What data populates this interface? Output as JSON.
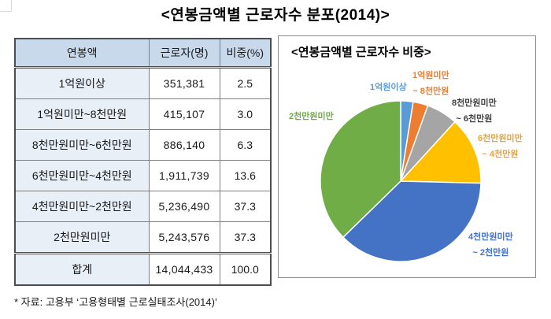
{
  "page": {
    "title": "<연봉금액별 근로자수 분포(2014)>",
    "footnote": "* 자료: 고용부 ‘고용형태별 근로실태조사(2014)’"
  },
  "table": {
    "headers": [
      "연봉액",
      "근로자(명)",
      "비중(%)"
    ],
    "rows": [
      {
        "salary": "1억원이상",
        "workers": "351,381",
        "share": "2.5"
      },
      {
        "salary": "1억원미만~8천만원",
        "workers": "415,107",
        "share": "3.0"
      },
      {
        "salary": "8천만원미만~6천만원",
        "workers": "886,140",
        "share": "6.3"
      },
      {
        "salary": "6천만원미만~4천만원",
        "workers": "1,911,739",
        "share": "13.6"
      },
      {
        "salary": "4천만원미만~2천만원",
        "workers": "5,236,490",
        "share": "37.3"
      },
      {
        "salary": "2천만원미만",
        "workers": "5,243,576",
        "share": "37.3"
      }
    ],
    "total_row": {
      "salary": "합계",
      "workers": "14,044,433",
      "share": "100.0"
    }
  },
  "chart": {
    "title": "<연봉금액별 근로자수 비중>"
  },
  "chart_data": {
    "type": "pie",
    "title": "<연봉금액별 근로자수 비중>",
    "categories": [
      "1억원이상",
      "1억원미만~8천만원",
      "8천만원미만~6천만원",
      "6천만원미만~4천만원",
      "4천만원미만~2천만원",
      "2천만원미만"
    ],
    "values": [
      2.5,
      3.0,
      6.3,
      13.6,
      37.3,
      37.3
    ],
    "unit": "%",
    "colors": [
      "#5B9BD5",
      "#ED7D31",
      "#A5A5A5",
      "#FFC000",
      "#4472C4",
      "#70AD47"
    ],
    "start_angle_deg_from_top": 0,
    "direction": "clockwise",
    "legend_position": "callout-labels",
    "labels": [
      {
        "lines": [
          "1억원이상"
        ],
        "color": "#5B9BD5"
      },
      {
        "lines": [
          "1억원미만",
          "~ 8천만원"
        ],
        "color": "#ED7D31"
      },
      {
        "lines": [
          "8천만원미만",
          "~ 6천만원"
        ],
        "color": "#404040"
      },
      {
        "lines": [
          "6천만원미만",
          "~ 4천만원"
        ],
        "color": "#E8A33D"
      },
      {
        "lines": [
          "4천만원미만",
          "~ 2천만원"
        ],
        "color": "#4472C4"
      },
      {
        "lines": [
          "2천만원미만"
        ],
        "color": "#70AD47"
      }
    ]
  }
}
